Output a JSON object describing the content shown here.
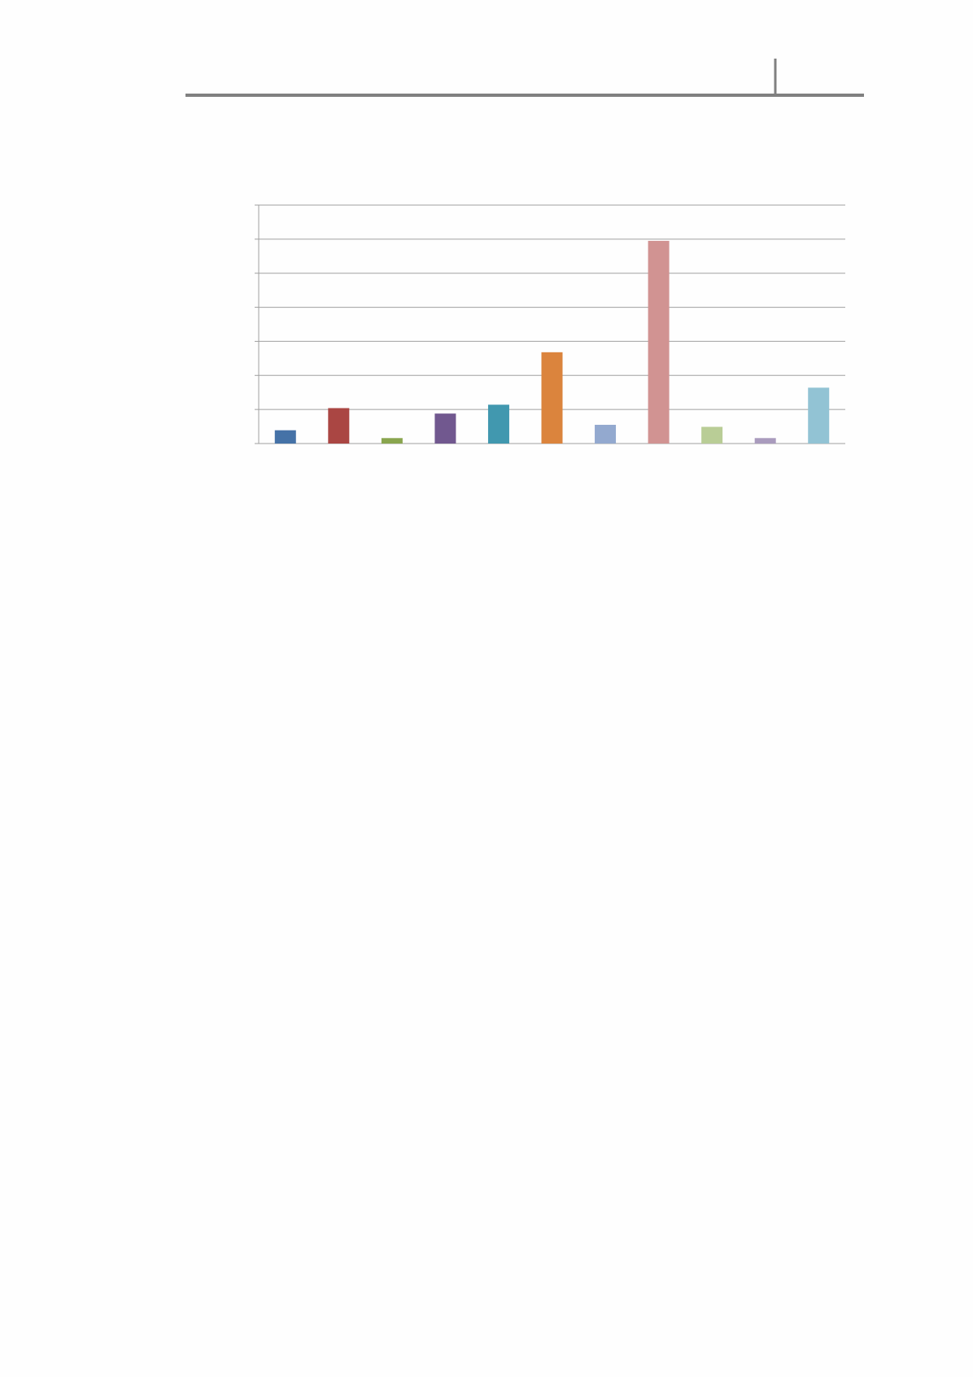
{
  "chart_data": {
    "type": "bar",
    "categories": [
      null,
      null,
      null,
      null,
      null,
      null,
      null,
      null,
      null,
      null,
      null
    ],
    "values": [
      0.39,
      1.04,
      0.16,
      0.88,
      1.14,
      2.68,
      0.55,
      5.95,
      0.49,
      0.16,
      1.64
    ],
    "colors": [
      "#4572a7",
      "#aa4643",
      "#89a54e",
      "#71588f",
      "#4198af",
      "#db843d",
      "#93a9cf",
      "#d19392",
      "#b9cd96",
      "#a99bbd",
      "#92c3d4"
    ],
    "ylim": [
      0,
      7
    ],
    "yticks": [
      0,
      1,
      2,
      3,
      4,
      5,
      6,
      7
    ],
    "grid": true
  }
}
